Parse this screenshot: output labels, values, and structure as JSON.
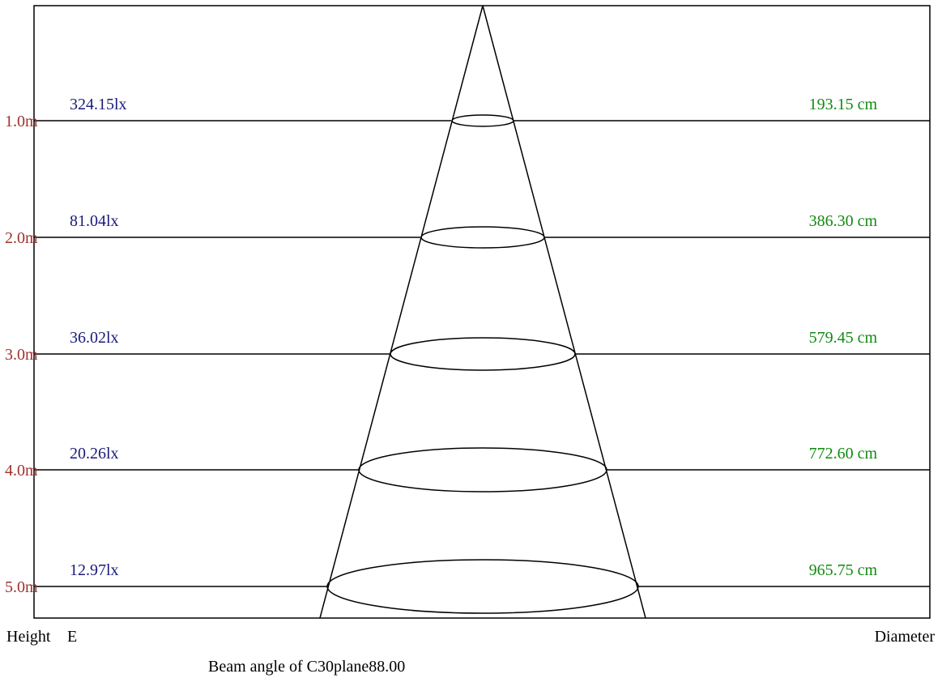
{
  "labels": {
    "height": "Height",
    "illuminance": "E",
    "diameter": "Diameter",
    "beam_angle": "Beam angle of C30plane88.00"
  },
  "colors": {
    "height_text": "#a0302c",
    "lux_text": "#1a1a7a",
    "diameter_text": "#118a11",
    "lines": "#000000",
    "frame": "#000000"
  },
  "rows": [
    {
      "height": "1.0m",
      "illuminance": "324.15lx",
      "diameter": "193.15 cm"
    },
    {
      "height": "2.0m",
      "illuminance": "81.04lx",
      "diameter": "386.30 cm"
    },
    {
      "height": "3.0m",
      "illuminance": "36.02lx",
      "diameter": "579.45 cm"
    },
    {
      "height": "4.0m",
      "illuminance": "20.26lx",
      "diameter": "772.60 cm"
    },
    {
      "height": "5.0m",
      "illuminance": "12.97lx",
      "diameter": "965.75 cm"
    }
  ]
}
